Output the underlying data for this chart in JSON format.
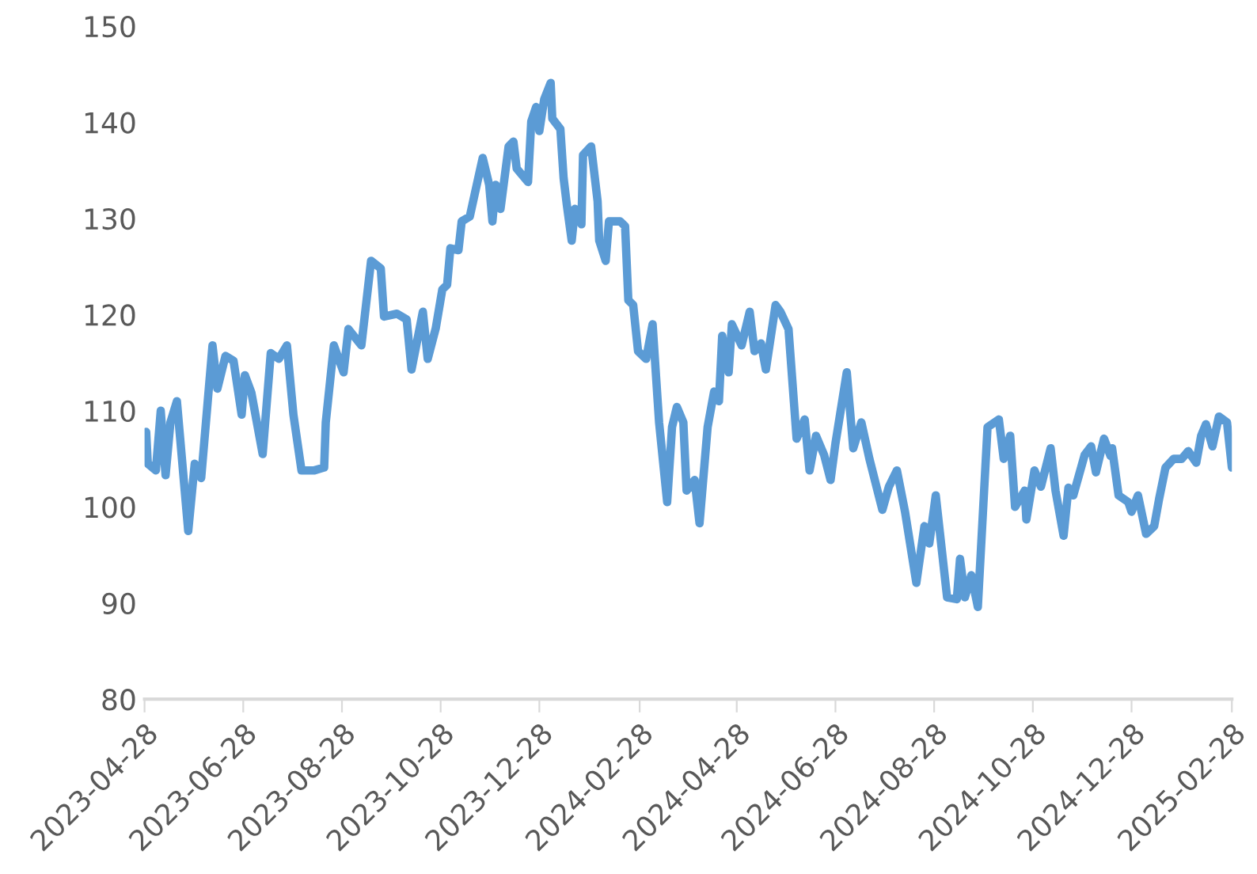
{
  "chart_data": {
    "type": "line",
    "x": [
      "2023-04-29",
      "2023-04-30",
      "2023-05-05",
      "2023-05-08",
      "2023-05-11",
      "2023-05-14",
      "2023-05-18",
      "2023-05-25",
      "2023-05-29",
      "2023-06-02",
      "2023-06-09",
      "2023-06-12",
      "2023-06-17",
      "2023-06-22",
      "2023-06-27",
      "2023-06-29",
      "2023-07-03",
      "2023-07-10",
      "2023-07-15",
      "2023-07-20",
      "2023-07-25",
      "2023-07-29",
      "2023-08-03",
      "2023-08-11",
      "2023-08-17",
      "2023-08-18",
      "2023-08-23",
      "2023-08-29",
      "2023-09-01",
      "2023-09-09",
      "2023-09-15",
      "2023-09-21",
      "2023-09-23",
      "2023-10-01",
      "2023-10-07",
      "2023-10-10",
      "2023-10-17",
      "2023-10-20",
      "2023-10-25",
      "2023-10-29",
      "2023-11-01",
      "2023-11-03",
      "2023-11-08",
      "2023-11-10",
      "2023-11-15",
      "2023-11-18",
      "2023-11-23",
      "2023-11-27",
      "2023-11-29",
      "2023-12-01",
      "2023-12-04",
      "2023-12-09",
      "2023-12-12",
      "2023-12-14",
      "2023-12-21",
      "2023-12-23",
      "2023-12-26",
      "2023-12-28",
      "2023-12-31",
      "2024-01-04",
      "2024-01-05",
      "2024-01-10",
      "2024-01-12",
      "2024-01-14",
      "2024-01-17",
      "2024-01-19",
      "2024-01-23",
      "2024-01-24",
      "2024-01-29",
      "2024-02-02",
      "2024-02-03",
      "2024-02-07",
      "2024-02-09",
      "2024-02-16",
      "2024-02-19",
      "2024-02-21",
      "2024-02-24",
      "2024-02-27",
      "2024-03-03",
      "2024-03-07",
      "2024-03-11",
      "2024-03-16",
      "2024-03-19",
      "2024-03-22",
      "2024-03-26",
      "2024-03-28",
      "2024-04-02",
      "2024-04-05",
      "2024-04-10",
      "2024-04-14",
      "2024-04-17",
      "2024-04-19",
      "2024-04-23",
      "2024-04-25",
      "2024-05-01",
      "2024-05-06",
      "2024-05-09",
      "2024-05-13",
      "2024-05-16",
      "2024-05-22",
      "2024-05-25",
      "2024-05-30",
      "2024-06-04",
      "2024-06-09",
      "2024-06-12",
      "2024-06-16",
      "2024-06-21",
      "2024-06-25",
      "2024-06-28",
      "2024-07-05",
      "2024-07-09",
      "2024-07-14",
      "2024-07-19",
      "2024-07-27",
      "2024-07-31",
      "2024-08-05",
      "2024-08-10",
      "2024-08-17",
      "2024-08-22",
      "2024-08-25",
      "2024-08-29",
      "2024-09-05",
      "2024-09-11",
      "2024-09-13",
      "2024-09-16",
      "2024-09-20",
      "2024-09-24",
      "2024-09-30",
      "2024-10-07",
      "2024-10-10",
      "2024-10-14",
      "2024-10-17",
      "2024-10-23",
      "2024-10-24",
      "2024-10-29",
      "2024-11-02",
      "2024-11-08",
      "2024-11-11",
      "2024-11-16",
      "2024-11-19",
      "2024-11-22",
      "2024-11-29",
      "2024-12-03",
      "2024-12-06",
      "2024-12-11",
      "2024-12-15",
      "2024-12-16",
      "2024-12-20",
      "2024-12-26",
      "2024-12-28",
      "2025-01-01",
      "2025-01-06",
      "2025-01-11",
      "2025-01-14",
      "2025-01-18",
      "2025-01-23",
      "2025-01-28",
      "2025-02-01",
      "2025-02-06",
      "2025-02-09",
      "2025-02-12",
      "2025-02-16",
      "2025-02-20",
      "2025-02-25",
      "2025-02-28"
    ],
    "series": [
      {
        "color": "#5b9bd5",
        "values": [
          107.8,
          104.5,
          103.8,
          110,
          103.3,
          108.8,
          111,
          97.5,
          104.5,
          103,
          116.8,
          112.3,
          115.7,
          115.2,
          109.6,
          113.7,
          111.9,
          105.5,
          116,
          115.4,
          116.8,
          109.6,
          103.8,
          103.8,
          104.1,
          108.8,
          116.8,
          114,
          118.5,
          116.8,
          125.6,
          124.8,
          119.8,
          120.1,
          119.5,
          114.3,
          120.3,
          115.4,
          118.6,
          122.6,
          123.1,
          126.9,
          126.7,
          129.7,
          130.2,
          132.5,
          136.3,
          133.5,
          129.7,
          133.5,
          131,
          137.5,
          138,
          135.2,
          133.8,
          140.1,
          141.6,
          139.1,
          142.4,
          144.1,
          140.4,
          139.3,
          134.2,
          131.4,
          127.7,
          131,
          129.4,
          136.6,
          137.5,
          131.8,
          127.7,
          125.6,
          129.7,
          129.7,
          129.2,
          121.5,
          121,
          116.2,
          115.4,
          119,
          108.8,
          100.5,
          108.3,
          110.4,
          108.8,
          101.7,
          102.8,
          98.3,
          108.3,
          112,
          111,
          117.8,
          114,
          119,
          116.8,
          120.3,
          116.2,
          117,
          114.3,
          121,
          120.3,
          118.5,
          107.1,
          109.1,
          103.8,
          107.4,
          105.4,
          102.8,
          106.6,
          114,
          106.1,
          108.8,
          105,
          99.7,
          102.1,
          103.8,
          99.5,
          92.1,
          98,
          96.2,
          101.2,
          90.6,
          90.4,
          94.6,
          90.6,
          92.9,
          89.6,
          108.3,
          109.1,
          105,
          107.4,
          100,
          101.7,
          98.7,
          103.8,
          102.1,
          106.1,
          101.7,
          97,
          102,
          101.2,
          105.4,
          106.3,
          103.6,
          107.1,
          105.3,
          106.1,
          101.2,
          100.5,
          99.5,
          101.2,
          97.2,
          98,
          100.8,
          104.1,
          105,
          105,
          105.8,
          104.6,
          107.4,
          108.6,
          106.3,
          109.4,
          108.8,
          104.1
        ]
      }
    ],
    "xlim": [
      "2023-04-28",
      "2025-02-28"
    ],
    "xticks": [
      "2023-04-28",
      "2023-06-28",
      "2023-08-28",
      "2023-10-28",
      "2023-12-28",
      "2024-02-28",
      "2024-04-28",
      "2024-06-28",
      "2024-08-28",
      "2024-10-28",
      "2024-12-28",
      "2025-02-28"
    ],
    "ylim": [
      80,
      150
    ],
    "yticks": [
      80,
      90,
      100,
      110,
      120,
      130,
      140,
      150
    ],
    "grid": false,
    "legend": false,
    "marker": "none",
    "line_style": "solid"
  }
}
